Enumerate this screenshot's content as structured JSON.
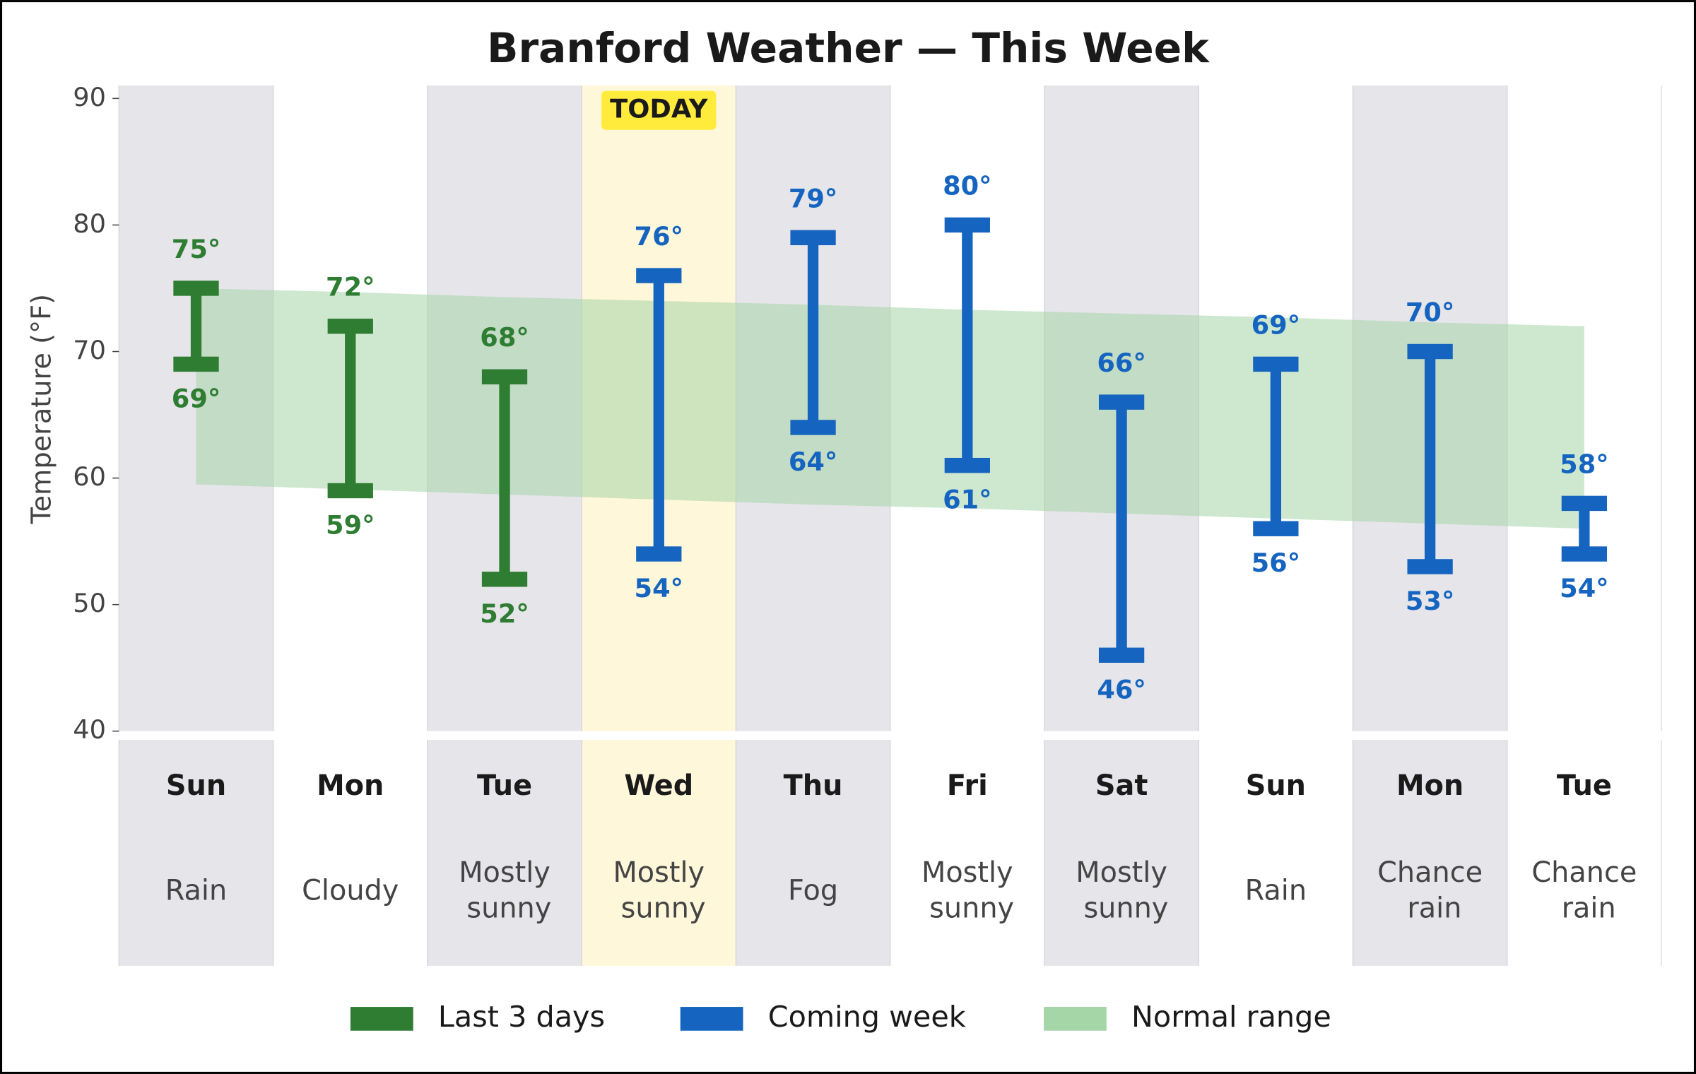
{
  "chart_data": {
    "type": "weather_range",
    "title": "Branford Weather — This Week",
    "y_label": "Temperature (°F)",
    "ylim": [
      40,
      90
    ],
    "yticks": [
      40,
      50,
      60,
      70,
      80,
      90
    ],
    "categories": [
      "Sun",
      "Mon",
      "Tue",
      "Wed",
      "Thu",
      "Fri",
      "Sat",
      "Sun",
      "Mon",
      "Tue"
    ],
    "conditions": [
      "Rain",
      "Cloudy",
      "Mostly sunny",
      "Mostly sunny",
      "Fog",
      "Mostly sunny",
      "Mostly sunny",
      "Rain",
      "Chance rain",
      "Chance rain"
    ],
    "annotation": {
      "text": "TODAY",
      "category": 3
    },
    "series": [
      {
        "name": "Last 3 days",
        "color": "#2e7d32",
        "highs": [
          75,
          72,
          68,
          null,
          null,
          null,
          null,
          null,
          null,
          null
        ],
        "lows": [
          69,
          59,
          52,
          null,
          null,
          null,
          null,
          null,
          null,
          null
        ],
        "high_labels": [
          "75°",
          "72°",
          "68°",
          null,
          null,
          null,
          null,
          null,
          null,
          null
        ],
        "low_labels": [
          "69°",
          "59°",
          "52°",
          null,
          null,
          null,
          null,
          null,
          null,
          null
        ]
      },
      {
        "name": "Coming week",
        "color": "#1565c0",
        "highs": [
          null,
          null,
          null,
          76,
          79,
          80,
          66,
          69,
          70,
          58
        ],
        "lows": [
          null,
          null,
          null,
          54,
          64,
          61,
          46,
          56,
          53,
          54
        ],
        "high_labels": [
          null,
          null,
          null,
          "76°",
          "79°",
          "80°",
          "66°",
          "69°",
          "70°",
          "58°"
        ],
        "low_labels": [
          null,
          null,
          null,
          "54°",
          "64°",
          "61°",
          "46°",
          "56°",
          "53°",
          "54°"
        ]
      }
    ],
    "normal_range": {
      "name": "Normal range",
      "color": "#a5d6a7",
      "highs": [
        75,
        74.7,
        74.3,
        74,
        73.7,
        73.3,
        73,
        72.7,
        72.3,
        72
      ],
      "lows": [
        59.5,
        59.1,
        58.7,
        58.3,
        57.9,
        57.6,
        57.2,
        56.8,
        56.4,
        56
      ]
    }
  }
}
